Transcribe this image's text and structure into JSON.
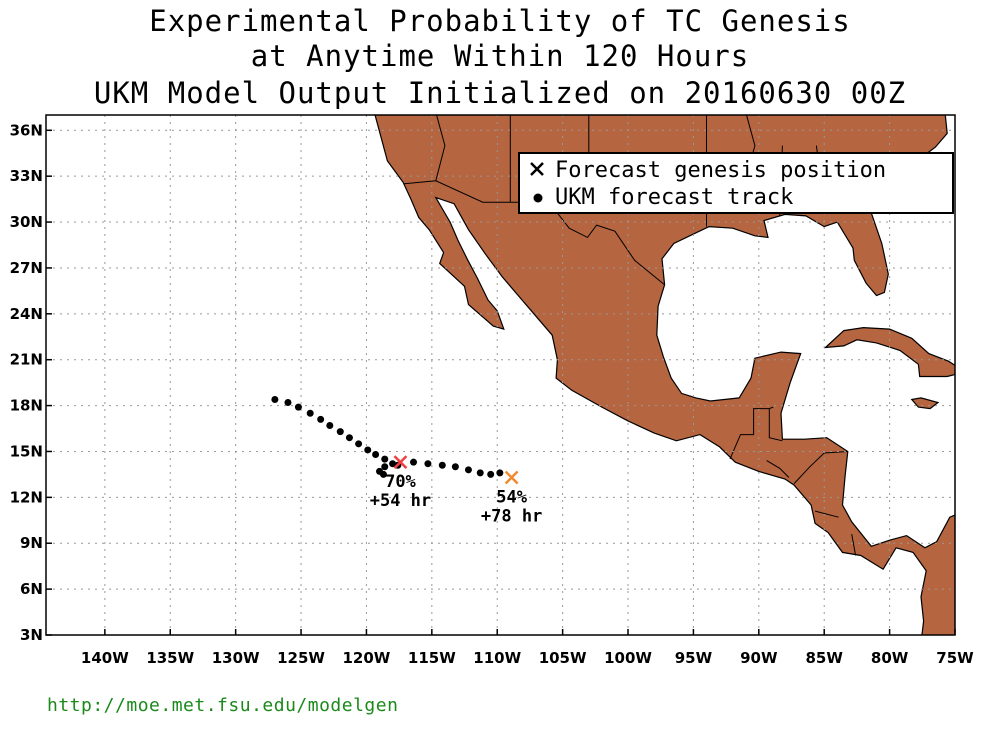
{
  "title": {
    "line1": "Experimental Probability of TC Genesis",
    "line2": "at Anytime Within 120 Hours",
    "line3": "UKM Model Output Initialized on 20160630 00Z"
  },
  "axes": {
    "lon_ticks": [
      "140W",
      "135W",
      "130W",
      "125W",
      "120W",
      "115W",
      "110W",
      "105W",
      "100W",
      "95W",
      "90W",
      "85W",
      "80W",
      "75W"
    ],
    "lat_ticks": [
      "36N",
      "33N",
      "30N",
      "27N",
      "24N",
      "21N",
      "18N",
      "15N",
      "12N",
      "9N",
      "6N",
      "3N"
    ],
    "lon_range": [
      -144.5,
      -75
    ],
    "lat_range": [
      3,
      37
    ],
    "grid": "dotted"
  },
  "legend": {
    "genesis_label": "Forecast genesis position",
    "track_label": "UKM forecast track",
    "placement": "top-right"
  },
  "colors": {
    "land": "#b5653f",
    "ocean": "#ffffff",
    "genesis_70": "#f04040",
    "genesis_54": "#f08a30",
    "url": "#1a8a1a"
  },
  "tracks": [
    {
      "name": "system-1",
      "points": [
        [
          -127.0,
          18.4
        ],
        [
          -126.0,
          18.2
        ],
        [
          -125.2,
          17.9
        ],
        [
          -124.3,
          17.5
        ],
        [
          -123.5,
          17.1
        ],
        [
          -122.8,
          16.7
        ],
        [
          -122.0,
          16.3
        ],
        [
          -121.3,
          15.9
        ],
        [
          -120.6,
          15.5
        ],
        [
          -119.9,
          15.1
        ],
        [
          -119.3,
          14.8
        ],
        [
          -118.6,
          14.5
        ],
        [
          -118.0,
          14.2
        ],
        [
          -117.6,
          14.1
        ],
        [
          -118.6,
          14.0
        ],
        [
          -119.0,
          13.7
        ],
        [
          -118.7,
          13.5
        ]
      ]
    },
    {
      "name": "system-2",
      "points": [
        [
          -116.4,
          14.3
        ],
        [
          -115.3,
          14.2
        ],
        [
          -114.2,
          14.1
        ],
        [
          -113.2,
          14.0
        ],
        [
          -112.2,
          13.8
        ],
        [
          -111.3,
          13.6
        ],
        [
          -110.5,
          13.5
        ],
        [
          -109.8,
          13.6
        ]
      ]
    }
  ],
  "genesis": [
    {
      "lon": -117.4,
      "lat": 14.3,
      "probability": "70%",
      "lead": "+54 hr",
      "color_key": "genesis_70"
    },
    {
      "lon": -108.9,
      "lat": 13.3,
      "probability": "54%",
      "lead": "+78 hr",
      "color_key": "genesis_54"
    }
  ],
  "footer": {
    "url": "http://moe.met.fsu.edu/modelgen"
  }
}
